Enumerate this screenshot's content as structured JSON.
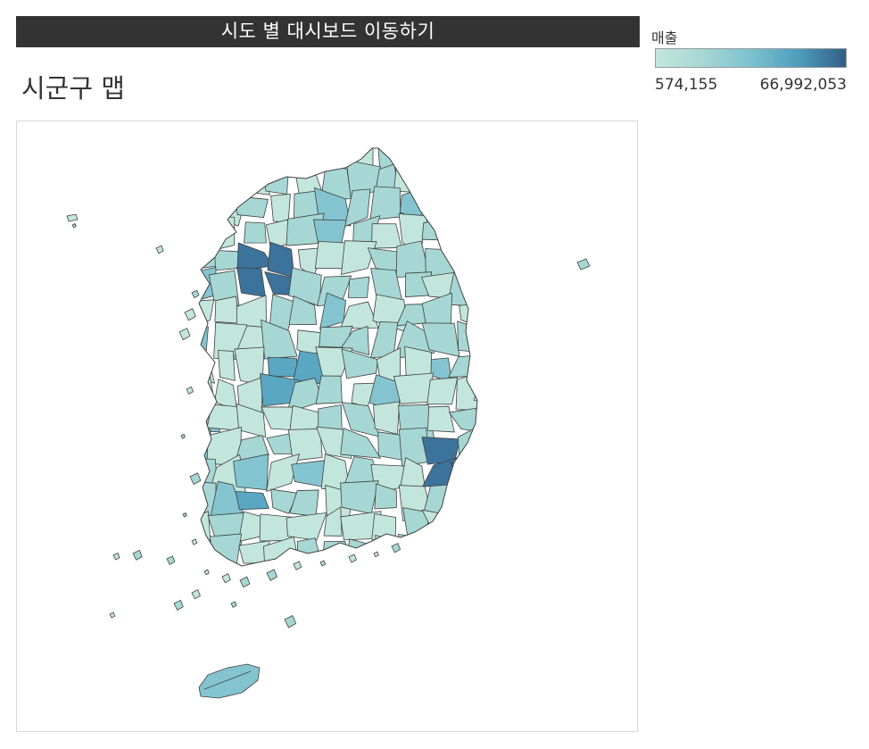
{
  "header": {
    "nav_button_label": "시도 별 대시보드 이동하기"
  },
  "page": {
    "title": "시군구 맵"
  },
  "legend": {
    "title": "매출",
    "min_label": "574,155",
    "max_label": "66,992,053",
    "color_low": "#c3e6dc",
    "color_high": "#315f86"
  },
  "map": {
    "region_level": "시군구",
    "colors": {
      "low": "#c3e6dc",
      "mid_low": "#a6d7d4",
      "mid": "#84c4d0",
      "mid_high": "#5aa7c3",
      "high": "#3c739c"
    }
  }
}
